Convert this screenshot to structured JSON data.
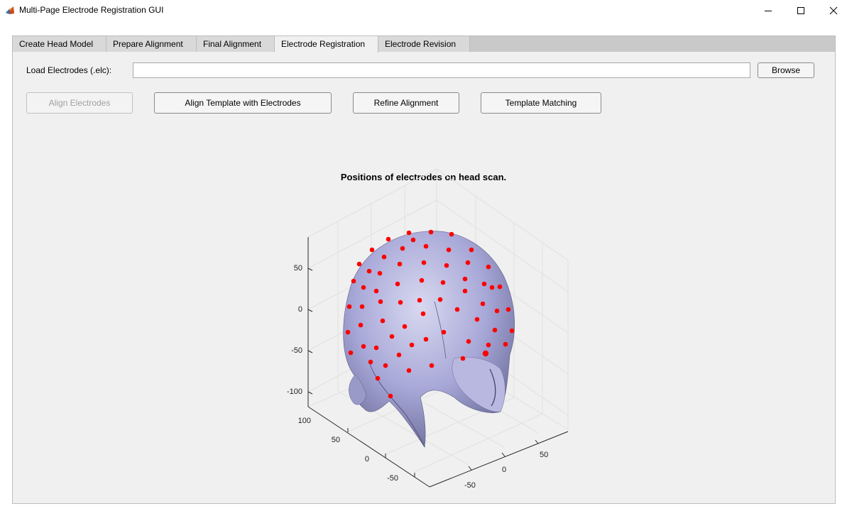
{
  "window": {
    "title": "Multi-Page Electrode Registration GUI",
    "icon": "matlab-icon",
    "controls": [
      "minimize-icon",
      "maximize-icon",
      "close-icon"
    ]
  },
  "tabs": [
    {
      "label": "Create Head Model"
    },
    {
      "label": "Prepare Alignment"
    },
    {
      "label": "Final Alignment"
    },
    {
      "label": "Electrode Registration",
      "active": true
    },
    {
      "label": "Electrode Revision"
    }
  ],
  "load": {
    "label": "Load Electrodes (.elc):",
    "value": "",
    "browse_label": "Browse"
  },
  "actions": {
    "align_electrodes": "Align Electrodes",
    "align_template": "Align Template with Electrodes",
    "refine_alignment": "Refine Alignment",
    "template_matching": "Template Matching"
  },
  "plot": {
    "title": "Positions of electrodes on head scan.",
    "z_ticks": [
      "50",
      "0",
      "-50",
      "-100"
    ],
    "y_ticks": [
      "100",
      "50",
      "0",
      "-50"
    ],
    "x_ticks": [
      "50",
      "0",
      "-50"
    ],
    "surface_color": "#a8a8d8",
    "electrode_color": "#ff0000"
  }
}
